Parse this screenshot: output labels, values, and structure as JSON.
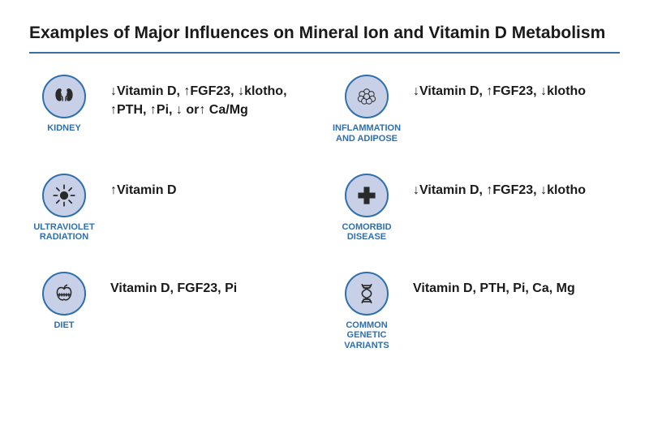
{
  "title": "Examples of Major Influences on Mineral Ion and Vitamin D Metabolism",
  "title_fontsize": 21,
  "title_color": "#1a1a1a",
  "rule_color": "#3a6ea5",
  "rule_height": 2,
  "background_color": "#ffffff",
  "label_color": "#2f6fab",
  "label_fontsize": 11,
  "effects_fontsize": 16,
  "icon_diameter": 54,
  "icon_fill": "#c7d0e6",
  "icon_stroke": "#2f6fab",
  "icon_stroke_width": 2,
  "icon_glyph_color": "#2a2a2a",
  "items": [
    {
      "key": "kidney",
      "label": "KIDNEY",
      "effects": "↓Vitamin D, ↑FGF23, ↓klotho, ↑PTH, ↑Pi, ↓ or↑ Ca/Mg"
    },
    {
      "key": "inflammation",
      "label": "INFLAMMATION AND ADIPOSE",
      "effects": "↓Vitamin D, ↑FGF23, ↓klotho"
    },
    {
      "key": "uv",
      "label": "ULTRAVIOLET RADIATION",
      "effects": "↑Vitamin D"
    },
    {
      "key": "comorbid",
      "label": "COMORBID DISEASE",
      "effects": "↓Vitamin D, ↑FGF23, ↓klotho"
    },
    {
      "key": "diet",
      "label": "DIET",
      "effects": "Vitamin D, FGF23, Pi"
    },
    {
      "key": "genetic",
      "label": "COMMON GENETIC VARIANTS",
      "effects": "Vitamin D, PTH, Pi, Ca, Mg"
    }
  ]
}
